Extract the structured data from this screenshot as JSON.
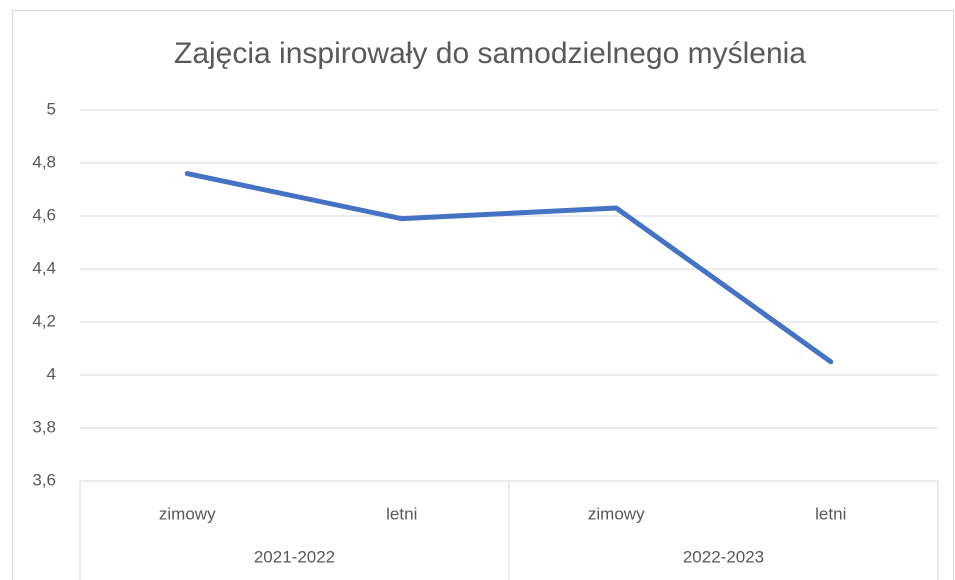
{
  "chart_data": {
    "type": "line",
    "title": "Zajęcia inspirowały do samodzielnego myślenia",
    "categories": [
      "zimowy",
      "letni",
      "zimowy",
      "letni"
    ],
    "groups": [
      "2021-2022",
      "2022-2023"
    ],
    "values": [
      4.76,
      4.59,
      4.63,
      4.05
    ],
    "color": "#4472c4",
    "ylim": [
      3.6,
      5
    ],
    "yticks": [
      {
        "value": 3.6,
        "label": "3,6"
      },
      {
        "value": 3.8,
        "label": "3,8"
      },
      4,
      {
        "value": 4.2,
        "label": "4,2"
      },
      {
        "value": 4.4,
        "label": "4,4"
      },
      {
        "value": 4.6,
        "label": "4,6"
      },
      {
        "value": 4.8,
        "label": "4,8"
      },
      5
    ],
    "grid": true
  }
}
